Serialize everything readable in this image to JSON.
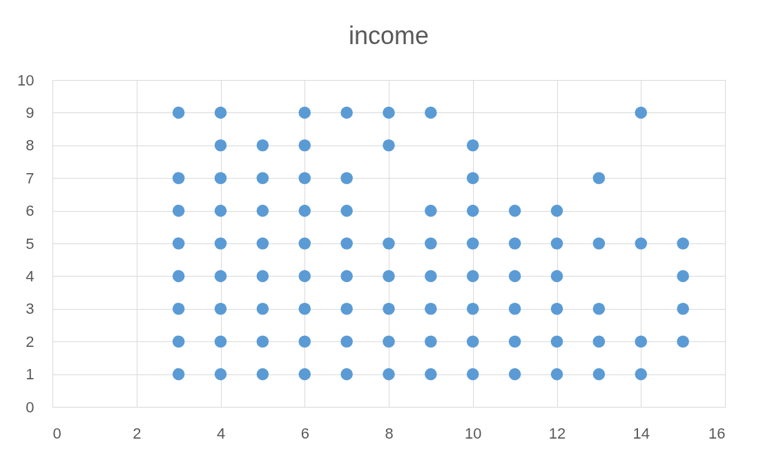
{
  "chart_data": {
    "type": "scatter",
    "title": "income",
    "series": [
      {
        "color": "#5b9bd5",
        "x": [
          3,
          3,
          3,
          3,
          3,
          3,
          3,
          3,
          4,
          4,
          4,
          4,
          4,
          4,
          4,
          4,
          4,
          5,
          5,
          5,
          5,
          5,
          5,
          5,
          5,
          6,
          6,
          6,
          6,
          6,
          6,
          6,
          6,
          6,
          7,
          7,
          7,
          7,
          7,
          7,
          7,
          7,
          8,
          8,
          8,
          8,
          8,
          8,
          8,
          9,
          9,
          9,
          9,
          9,
          9,
          9,
          10,
          10,
          10,
          10,
          10,
          10,
          10,
          10,
          11,
          11,
          11,
          11,
          11,
          11,
          12,
          12,
          12,
          12,
          12,
          12,
          13,
          13,
          13,
          13,
          13,
          14,
          14,
          14,
          14,
          15,
          15,
          15,
          15
        ],
        "values": [
          9,
          7,
          6,
          5,
          4,
          3,
          2,
          1,
          9,
          8,
          7,
          6,
          5,
          4,
          3,
          2,
          1,
          8,
          7,
          6,
          5,
          4,
          3,
          2,
          1,
          9,
          8,
          7,
          6,
          5,
          4,
          3,
          2,
          1,
          9,
          7,
          6,
          5,
          4,
          3,
          2,
          1,
          9,
          8,
          5,
          4,
          3,
          2,
          1,
          9,
          6,
          5,
          4,
          3,
          2,
          1,
          8,
          7,
          6,
          5,
          4,
          3,
          2,
          1,
          6,
          5,
          4,
          3,
          2,
          1,
          6,
          5,
          4,
          3,
          2,
          1,
          7,
          5,
          3,
          2,
          1,
          9,
          5,
          2,
          1,
          5,
          4,
          3,
          2
        ]
      }
    ],
    "xlim": [
      0,
      16
    ],
    "xticks": [
      0,
      2,
      4,
      6,
      8,
      10,
      12,
      14,
      16
    ],
    "ylim": [
      0,
      10
    ],
    "yticks": [
      0,
      1,
      2,
      3,
      4,
      5,
      6,
      7,
      8,
      9,
      10
    ],
    "grid": true,
    "marker": "circle"
  }
}
